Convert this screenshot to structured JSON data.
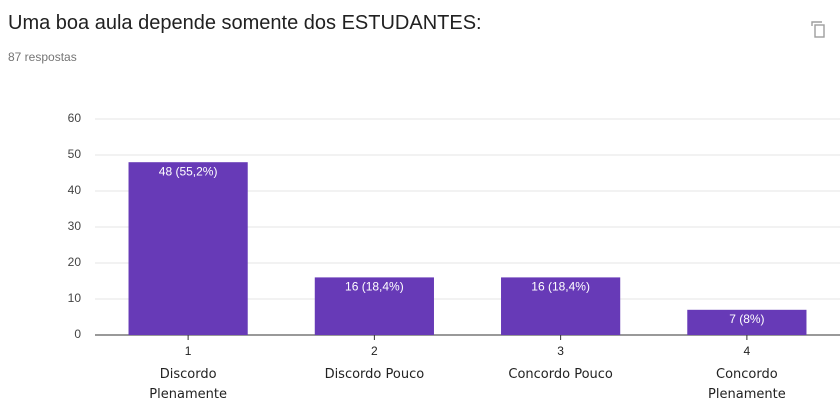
{
  "chart_data": {
    "type": "bar",
    "title": "Uma boa aula depende somente dos ESTUDANTES:",
    "subtitle": "87 respostas",
    "categories": [
      "1",
      "2",
      "3",
      "4"
    ],
    "category_descriptions": [
      "Discordo Plenamente",
      "Discordo Pouco",
      "Concordo Pouco",
      "Concordo Plenamente"
    ],
    "values": [
      48,
      16,
      16,
      7
    ],
    "value_labels": [
      "48 (55,2%)",
      "16 (18,4%)",
      "16 (18,4%)",
      "7 (8%)"
    ],
    "color": "#673ab7",
    "ylim": [
      0,
      60
    ],
    "yticks": [
      0,
      10,
      20,
      30,
      40,
      50,
      60
    ],
    "grid": true
  }
}
